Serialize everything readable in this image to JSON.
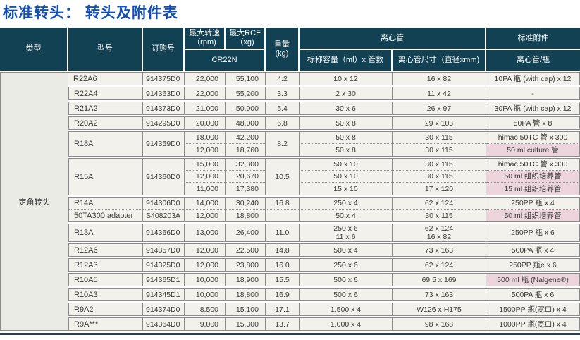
{
  "title": "标准转头：  转头及附件表",
  "colors": {
    "title_blue": "#1450b4",
    "header_bg": "#114152",
    "row_bg": "#f3f1ec",
    "type_cell_bg": "#e9ebe4",
    "highlight_pink": "#edd5de"
  },
  "table": {
    "header": {
      "type": "类型",
      "model": "型号",
      "order": "订购号",
      "max_speed": "最大转速\n（rpm)",
      "max_rcf": "最大RCF\n（xg)",
      "machine": "CR22N",
      "weight": "重量\n(kg)",
      "tube_group": "离心管",
      "capacity": "标称容量（ml）x 管数",
      "size": "离心管尺寸（直径xmm)",
      "accessory_group": "标准附件",
      "accessory": "离心管/瓶"
    },
    "type_label": "定角转头",
    "groups": [
      {
        "model": "R22A6",
        "order": "914375D0",
        "weight": "4.2",
        "rows": [
          {
            "rpm": "22,000",
            "rcf": "55,100",
            "cap": "10 x 12",
            "size": "16 x 82",
            "acc": "10PA 瓶 (with cap) x 12"
          }
        ]
      },
      {
        "model": "R22A4",
        "order": "914363D0",
        "weight": "3.3",
        "rows": [
          {
            "rpm": "22,000",
            "rcf": "55,200",
            "cap": "2 x 30",
            "size": "11 x 42",
            "acc": "-"
          }
        ]
      },
      {
        "model": "R21A2",
        "order": "914373D0",
        "weight": "5.4",
        "rows": [
          {
            "rpm": "21,000",
            "rcf": "50,000",
            "cap": "30 x 6",
            "size": "26 x 97",
            "acc": "30PA 瓶 (with cap) x 12"
          }
        ]
      },
      {
        "model": "R20A2",
        "order": "914295D0",
        "weight": "6.8",
        "rows": [
          {
            "rpm": "20,000",
            "rcf": "48,000",
            "cap": "50 x 8",
            "size": "29 x 103",
            "acc": "50PA 管 x 8"
          }
        ]
      },
      {
        "model": "R18A",
        "order": "914359D0",
        "weight": "8.2",
        "rows": [
          {
            "rpm": "18,000",
            "rcf": "42,200",
            "cap": "50 x 8",
            "size": "30 x 115",
            "acc": "himac 50TC 管 x 300"
          },
          {
            "rpm": "12,000",
            "rcf": "18,760",
            "cap": "50 x 8",
            "size": "30 x 115",
            "acc": "50 ml culture 管",
            "pink": true
          }
        ]
      },
      {
        "model": "R15A",
        "order": "914360D0",
        "weight": "10.5",
        "rows": [
          {
            "rpm": "15,000",
            "rcf": "32,300",
            "cap": "50 x 10",
            "size": "30 x 115",
            "acc": "himac 50TC 管 x 300"
          },
          {
            "rpm": "12,000",
            "rcf": "20,670",
            "cap": "50 x 10",
            "size": "30 x 115",
            "acc": "50 ml 组织培养管",
            "pink": true
          },
          {
            "rpm": "11,000",
            "rcf": "17,380",
            "cap": "15 x 10",
            "size": "17 x 120",
            "acc": "15 ml 组织培养管",
            "pink": true
          }
        ]
      },
      {
        "model": [
          "R14A",
          "50TA300 adapter"
        ],
        "order": [
          "914306D0",
          "S408203A"
        ],
        "weight": [
          "16.8",
          ""
        ],
        "rows": [
          {
            "rpm": "14,000",
            "rcf": "30,240",
            "cap": "250 x 4",
            "size": "62 x 124",
            "acc": "250PP 瓶 x 4"
          },
          {
            "rpm": "12,000",
            "rcf": "18,800",
            "cap": "50 x 4",
            "size": "30 x 115",
            "acc": "50 ml 组织培养管",
            "pink": true
          }
        ]
      },
      {
        "model": "R13A",
        "order": "914366D0",
        "weight": "11.0",
        "rows": [
          {
            "rpm": "13,000",
            "rcf": "26,400",
            "cap": "250 x 6\n11 x 6",
            "size": "62 x 124\n16 x 82",
            "acc": "250PP 瓶 x 6",
            "tall": true
          }
        ]
      },
      {
        "model": "R12A6",
        "order": "914357D0",
        "weight": "14.8",
        "rows": [
          {
            "rpm": "12,000",
            "rcf": "22,500",
            "cap": "500 x 4",
            "size": "73 x 163",
            "acc": "500PA 瓶 x 4"
          }
        ]
      },
      {
        "model": "R12A3",
        "order": "914325D0",
        "weight": "16.0",
        "rows": [
          {
            "rpm": "12,000",
            "rcf": "23,800",
            "cap": "250 x 6",
            "size": "62 x 124",
            "acc": "250PP 瓶e x 6"
          }
        ]
      },
      {
        "model": "R10A5",
        "order": "914365D1",
        "weight": "15.5",
        "rows": [
          {
            "rpm": "10,000",
            "rcf": "18,900",
            "cap": "500 x 6",
            "size": "69.5 x 169",
            "acc": "500 ml 瓶 (Nalgene®)",
            "pink": true
          }
        ]
      },
      {
        "model": "R10A3",
        "order": "914345D1",
        "weight": "16.9",
        "rows": [
          {
            "rpm": "10,000",
            "rcf": "18,800",
            "cap": "500 x 6",
            "size": "73 x 163",
            "acc": "500PA 瓶 x 6"
          }
        ]
      },
      {
        "model": "R9A2",
        "order": "914374D0",
        "weight": "17.1",
        "rows": [
          {
            "rpm": "8,500",
            "rcf": "15,100",
            "cap": "1,500 x 4",
            "size": "W126 x H175",
            "acc": "1500PP 瓶(宽口) x 4"
          }
        ]
      },
      {
        "model": "R9A***",
        "order": "914364D0",
        "weight": "13.7",
        "rows": [
          {
            "rpm": "9,000",
            "rcf": "15,300",
            "cap": "1,000 x 4",
            "size": "98 x 168",
            "acc": "1000PP 瓶(宽口) x 4"
          }
        ]
      }
    ]
  }
}
